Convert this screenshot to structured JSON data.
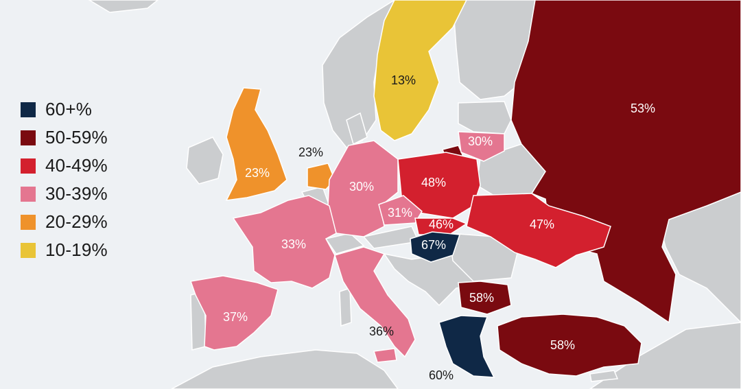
{
  "colors": {
    "sea": "#eef1f4",
    "land": "#cbcdcf",
    "border": "#ffffff",
    "c60": "#0f2846",
    "c50": "#7a0a10",
    "c40": "#d3202e",
    "c30": "#e47690",
    "c20": "#ef922b",
    "c10": "#e9c437"
  },
  "legend": [
    {
      "label": "60+%",
      "color": "#0f2846"
    },
    {
      "label": "50-59%",
      "color": "#7a0a10"
    },
    {
      "label": "40-49%",
      "color": "#d3202e"
    },
    {
      "label": "30-39%",
      "color": "#e47690"
    },
    {
      "label": "20-29%",
      "color": "#ef922b"
    },
    {
      "label": "10-19%",
      "color": "#e9c437"
    }
  ],
  "countries": {
    "sweden": "13%",
    "russia": "53%",
    "lithuania": "30%",
    "united_kingdom": "23%",
    "netherlands": "23%",
    "germany": "30%",
    "poland": "48%",
    "czechia": "31%",
    "slovakia": "46%",
    "ukraine": "47%",
    "hungary": "67%",
    "france": "33%",
    "spain": "37%",
    "italy": "36%",
    "bulgaria": "58%",
    "greece": "60%",
    "turkey": "58%"
  }
}
